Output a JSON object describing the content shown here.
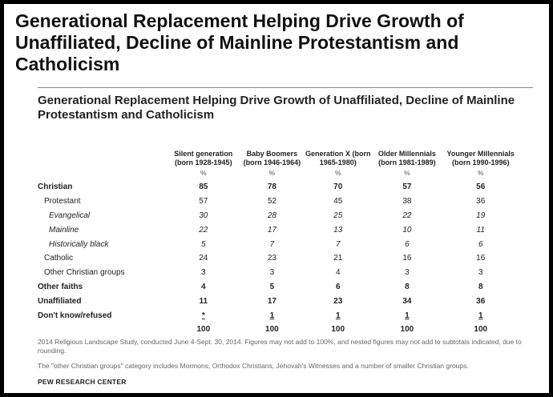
{
  "title": "Generational Replacement Helping Drive Growth of Unaffiliated, Decline of Mainline Protestantism and Catholicism",
  "subtitle": "Generational Replacement Helping Drive Growth of Unaffiliated, Decline of Mainline Protestantism and Catholicism",
  "chart_data": {
    "type": "table",
    "columns": [
      "Silent generation (born 1928-1945)",
      "Baby Boomers (born 1946-1964)",
      "Generation X (born 1965-1980)",
      "Older Millennials (born 1981-1989)",
      "Younger Millennials (born 1990-1996)"
    ],
    "unit_row": [
      "%",
      "%",
      "%",
      "%",
      "%"
    ],
    "rows": [
      {
        "label": "Christian",
        "values": [
          "85",
          "78",
          "70",
          "57",
          "56"
        ]
      },
      {
        "label": "Protestant",
        "values": [
          "57",
          "52",
          "45",
          "38",
          "36"
        ]
      },
      {
        "label": "Evangelical",
        "values": [
          "30",
          "28",
          "25",
          "22",
          "19"
        ]
      },
      {
        "label": "Mainline",
        "values": [
          "22",
          "17",
          "13",
          "10",
          "11"
        ]
      },
      {
        "label": "Historically black",
        "values": [
          "5",
          "7",
          "7",
          "6",
          "6"
        ]
      },
      {
        "label": "Catholic",
        "values": [
          "24",
          "23",
          "21",
          "16",
          "16"
        ]
      },
      {
        "label": "Other Christian groups",
        "values": [
          "3",
          "3",
          "4",
          "3",
          "3"
        ]
      },
      {
        "label": "Other faiths",
        "values": [
          "4",
          "5",
          "6",
          "8",
          "8"
        ]
      },
      {
        "label": "Unaffiliated",
        "values": [
          "11",
          "17",
          "23",
          "34",
          "36"
        ]
      },
      {
        "label": "Don't know/refused",
        "values": [
          "*",
          "1",
          "1",
          "1",
          "1"
        ]
      },
      {
        "label": "",
        "values": [
          "100",
          "100",
          "100",
          "100",
          "100"
        ]
      }
    ]
  },
  "notes": {
    "note1": "2014 Religious Landscape Study, conducted June 4-Sept. 30, 2014. Figures may not add to 100%, and nested figures may not add to subtotals indicated, due to rounding.",
    "note2": "The \"other Christian groups\" category includes Mormons, Orthodox Christians, Jehovah's Witnesses and a number of smaller Christian groups.",
    "source": "PEW RESEARCH CENTER"
  },
  "colors": {
    "frame_border": "#000000",
    "text": "#222222",
    "note_text": "#666666"
  }
}
